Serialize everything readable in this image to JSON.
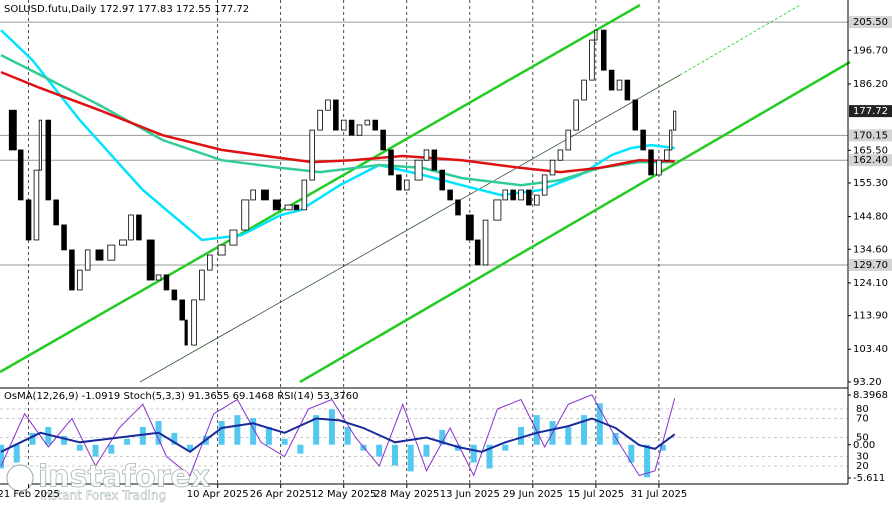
{
  "chart_data": {
    "type": "candlestick",
    "title": "SOLUSD.futu,Daily 172.97 177.83 172.55 177.72",
    "x": [
      0,
      3,
      5,
      7,
      9,
      10,
      12,
      14,
      16,
      18,
      20,
      22,
      25,
      28,
      31,
      33,
      35,
      38,
      40,
      42,
      44,
      46,
      47,
      49,
      51,
      53,
      56,
      59,
      62,
      64,
      67,
      70,
      73,
      75,
      77,
      79,
      81,
      83,
      85,
      87,
      89,
      91,
      93,
      95,
      97,
      99,
      101,
      103,
      106,
      108,
      110,
      112,
      114,
      116,
      119,
      121,
      123,
      126,
      128,
      130,
      132,
      134,
      136,
      138,
      140,
      142,
      144,
      146,
      148,
      150,
      151,
      153,
      155,
      157,
      159,
      161,
      163,
      165,
      167,
      169,
      170,
      171
    ],
    "values": [
      178.0,
      165.6,
      150.0,
      137.5,
      159.3,
      174.9,
      150.0,
      142.2,
      134.4,
      121.9,
      128.1,
      134.4,
      131.2,
      135.9,
      137.5,
      145.3,
      137.5,
      125.0,
      126.6,
      121.9,
      118.8,
      112.5,
      104.7,
      118.8,
      128.1,
      132.8,
      135.9,
      140.6,
      150.0,
      153.1,
      150.0,
      146.9,
      148.4,
      146.9,
      156.2,
      171.8,
      178.0,
      181.2,
      171.8,
      174.9,
      170.2,
      173.4,
      174.9,
      171.8,
      165.6,
      157.8,
      153.1,
      156.2,
      162.4,
      165.6,
      159.3,
      153.1,
      150.0,
      145.3,
      137.5,
      129.7,
      143.7,
      150.0,
      153.1,
      150.0,
      153.1,
      148.4,
      151.5,
      157.8,
      162.4,
      165.6,
      171.8,
      181.2,
      187.4,
      199.9,
      203.0,
      190.5,
      184.3,
      187.4,
      181.2,
      171.8,
      165.6,
      157.8,
      162.4,
      165.6,
      171.8,
      177.72
    ],
    "color_up": "#ffffff",
    "color_down": "#000000",
    "xlim": [
      0,
      215
    ],
    "ylim": [
      91.3,
      212.4
    ],
    "yticks": [
      {
        "value": 93.2,
        "label": "93.20"
      },
      {
        "value": 103.4,
        "label": "103.40"
      },
      {
        "value": 113.9,
        "label": "113.90"
      },
      {
        "value": 124.1,
        "label": "124.10"
      },
      {
        "value": 134.6,
        "label": "134.60"
      },
      {
        "value": 144.8,
        "label": "144.80"
      },
      {
        "value": 155.3,
        "label": "155.30"
      },
      {
        "value": 165.5,
        "label": "165.50"
      },
      {
        "value": 186.2,
        "label": "186.20"
      },
      {
        "value": 196.7,
        "label": "196.70"
      }
    ],
    "xticks": [
      {
        "value": 7,
        "label": "21 Feb 2025"
      },
      {
        "value": 55,
        "label": "10 Apr 2025"
      },
      {
        "value": 71,
        "label": "26 Apr 2025"
      },
      {
        "value": 87,
        "label": "12 May 2025"
      },
      {
        "value": 103,
        "label": "28 May 2025"
      },
      {
        "value": 119,
        "label": "13 Jun 2025"
      },
      {
        "value": 135,
        "label": "29 Jun 2025"
      },
      {
        "value": 151,
        "label": "15 Jul 2025"
      },
      {
        "value": 167,
        "label": "31 Jul 2025"
      }
    ],
    "levels": [
      {
        "value": 205.5,
        "label": "205.50"
      },
      170.15,
      {
        "value": 162.4,
        "label": "162.40"
      },
      {
        "value": 129.7,
        "label": "129.70"
      }
    ],
    "last_price": 177.72,
    "grid": true,
    "moving_averages": [
      {
        "color": "#00e5ff",
        "x": [
          0,
          8,
          20,
          36,
          51,
          61,
          71,
          76,
          86,
          96,
          107,
          117,
          127,
          137,
          147,
          155,
          160,
          165,
          171
        ],
        "values": [
          203.0,
          193.6,
          174.9,
          153.1,
          137.5,
          139.0,
          145.3,
          146.8,
          154.6,
          160.9,
          157.8,
          154.6,
          151.5,
          153.1,
          157.8,
          164.0,
          166.2,
          167.1,
          166.2
        ]
      },
      {
        "color": "#33cc99",
        "x": [
          0,
          10,
          25,
          41,
          56,
          71,
          81,
          96,
          107,
          117,
          132,
          142,
          152,
          162,
          171
        ],
        "values": [
          195.2,
          189.0,
          179.6,
          168.7,
          162.4,
          160.0,
          158.7,
          160.9,
          160.0,
          156.8,
          154.6,
          156.2,
          160.0,
          161.8,
          161.8
        ]
      },
      {
        "color": "#dd1111",
        "x": [
          0,
          10,
          25,
          41,
          56,
          71,
          79,
          89,
          102,
          117,
          132,
          142,
          152,
          162,
          171
        ],
        "values": [
          189.9,
          184.9,
          178.0,
          170.2,
          165.6,
          163.1,
          161.8,
          162.4,
          163.7,
          162.4,
          160.0,
          158.7,
          160.0,
          162.4,
          162.1
        ]
      }
    ],
    "oscillator": {
      "header": "OsMA(12,26,9) -1.0919 Stoch(5,3,3) 91.3655 69.1468 RSI(14) 53.3760",
      "ylim": [
        -5.611,
        8.3968
      ],
      "yticks": [
        8.3968,
        {
          "value": 0,
          "label": "0.00"
        },
        -5.611
      ],
      "y2lim": [
        0,
        100
      ],
      "y2ticks": [
        80,
        70,
        50,
        30,
        20
      ],
      "osma": {
        "color": "#55c8f0",
        "x": [
          0,
          4,
          8,
          12,
          16,
          20,
          24,
          28,
          32,
          36,
          40,
          44,
          48,
          52,
          56,
          60,
          64,
          68,
          72,
          76,
          80,
          84,
          88,
          92,
          96,
          100,
          104,
          108,
          112,
          116,
          120,
          124,
          128,
          132,
          136,
          140,
          144,
          148,
          152,
          156,
          160,
          164,
          168
        ],
        "values": [
          -4,
          -3,
          2,
          3,
          1.5,
          -1,
          -2,
          -1.5,
          1,
          3,
          4,
          2,
          -1,
          1.5,
          4,
          5,
          4.5,
          3,
          1,
          -1.5,
          5,
          6,
          3,
          -1,
          -2,
          -3.5,
          -4.5,
          -2,
          2.5,
          -1,
          -3,
          -4,
          -1,
          3,
          5,
          4,
          3,
          5,
          7,
          2,
          -3,
          -5.5,
          -1
        ]
      },
      "stoch": {
        "color": "#8833cc",
        "x": [
          0,
          6,
          12,
          18,
          24,
          30,
          36,
          42,
          48,
          54,
          60,
          66,
          72,
          78,
          84,
          90,
          96,
          102,
          108,
          114,
          120,
          126,
          132,
          138,
          144,
          150,
          156,
          162,
          166,
          171
        ],
        "values": [
          20,
          75,
          40,
          70,
          20,
          60,
          85,
          30,
          10,
          75,
          90,
          45,
          30,
          80,
          90,
          50,
          20,
          85,
          15,
          60,
          10,
          80,
          90,
          40,
          85,
          95,
          50,
          10,
          15,
          91.3655
        ]
      },
      "rsi": {
        "color": "#1a2a9a",
        "x": [
          0,
          10,
          20,
          30,
          40,
          48,
          56,
          64,
          72,
          80,
          86,
          92,
          100,
          108,
          116,
          122,
          128,
          136,
          144,
          150,
          156,
          162,
          166,
          171
        ],
        "values": [
          35,
          55,
          45,
          50,
          55,
          35,
          60,
          65,
          55,
          70,
          68,
          60,
          45,
          50,
          40,
          35,
          45,
          55,
          62,
          70,
          60,
          42,
          38,
          53.376
        ]
      }
    },
    "watermark": "instaforex",
    "watermark_tagline": "Instant Forex Trading"
  }
}
